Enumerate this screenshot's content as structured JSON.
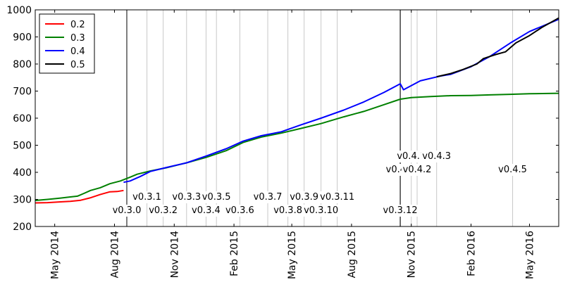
{
  "chart_data": {
    "type": "line",
    "ylim": [
      200,
      1000
    ],
    "y_ticks": [
      200,
      300,
      400,
      500,
      600,
      700,
      800,
      900,
      1000
    ],
    "xlim": [
      "2014-04-01",
      "2016-06-15"
    ],
    "x_ticks": [
      {
        "date": "2014-05-01",
        "label": "May 2014"
      },
      {
        "date": "2014-08-01",
        "label": "Aug 2014"
      },
      {
        "date": "2014-11-01",
        "label": "Nov 2014"
      },
      {
        "date": "2015-02-01",
        "label": "Feb 2015"
      },
      {
        "date": "2015-05-01",
        "label": "May 2015"
      },
      {
        "date": "2015-08-01",
        "label": "Aug 2015"
      },
      {
        "date": "2015-11-01",
        "label": "Nov 2015"
      },
      {
        "date": "2016-02-01",
        "label": "Feb 2016"
      },
      {
        "date": "2016-05-01",
        "label": "May 2016"
      }
    ],
    "grid": false,
    "legend_position": "top-left",
    "series": [
      {
        "name": "0.2",
        "color": "#ff0000",
        "points": [
          [
            "2014-04-01",
            287
          ],
          [
            "2014-04-20",
            288
          ],
          [
            "2014-05-10",
            291
          ],
          [
            "2014-05-25",
            293
          ],
          [
            "2014-06-10",
            297
          ],
          [
            "2014-06-25",
            306
          ],
          [
            "2014-07-10",
            318
          ],
          [
            "2014-07-25",
            328
          ],
          [
            "2014-08-05",
            329
          ],
          [
            "2014-08-15",
            333
          ]
        ]
      },
      {
        "name": "0.3",
        "color": "#008000",
        "points": [
          [
            "2014-04-01",
            296
          ],
          [
            "2014-04-20",
            300
          ],
          [
            "2014-05-10",
            305
          ],
          [
            "2014-05-25",
            309
          ],
          [
            "2014-06-05",
            312
          ],
          [
            "2014-06-15",
            322
          ],
          [
            "2014-06-25",
            333
          ],
          [
            "2014-07-10",
            343
          ],
          [
            "2014-07-25",
            358
          ],
          [
            "2014-08-10",
            368
          ],
          [
            "2014-08-25",
            382
          ],
          [
            "2014-09-05",
            393
          ],
          [
            "2014-09-25",
            405
          ],
          [
            "2014-10-20",
            417
          ],
          [
            "2014-11-20",
            435
          ],
          [
            "2014-12-20",
            455
          ],
          [
            "2015-01-20",
            480
          ],
          [
            "2015-02-15",
            510
          ],
          [
            "2015-03-15",
            530
          ],
          [
            "2015-04-15",
            545
          ],
          [
            "2015-05-15",
            562
          ],
          [
            "2015-06-15",
            580
          ],
          [
            "2015-07-20",
            605
          ],
          [
            "2015-08-20",
            625
          ],
          [
            "2015-09-20",
            650
          ],
          [
            "2015-10-15",
            670
          ],
          [
            "2015-11-01",
            676
          ],
          [
            "2015-12-01",
            680
          ],
          [
            "2016-01-01",
            683
          ],
          [
            "2016-02-01",
            684
          ],
          [
            "2016-03-01",
            686
          ],
          [
            "2016-04-01",
            688
          ],
          [
            "2016-05-01",
            690
          ],
          [
            "2016-06-15",
            692
          ]
        ]
      },
      {
        "name": "0.4",
        "color": "#0000ff",
        "points": [
          [
            "2014-08-15",
            363
          ],
          [
            "2014-08-25",
            368
          ],
          [
            "2014-09-10",
            385
          ],
          [
            "2014-09-25",
            403
          ],
          [
            "2014-10-20",
            418
          ],
          [
            "2014-11-20",
            435
          ],
          [
            "2014-12-20",
            460
          ],
          [
            "2015-01-20",
            487
          ],
          [
            "2015-02-15",
            515
          ],
          [
            "2015-03-15",
            535
          ],
          [
            "2015-04-15",
            550
          ],
          [
            "2015-05-15",
            575
          ],
          [
            "2015-06-15",
            600
          ],
          [
            "2015-07-20",
            630
          ],
          [
            "2015-08-20",
            660
          ],
          [
            "2015-09-20",
            695
          ],
          [
            "2015-10-15",
            727
          ],
          [
            "2015-10-20",
            705
          ],
          [
            "2015-11-01",
            720
          ],
          [
            "2015-11-15",
            738
          ],
          [
            "2015-12-15",
            755
          ],
          [
            "2016-01-01",
            762
          ],
          [
            "2016-02-01",
            790
          ],
          [
            "2016-03-01",
            828
          ],
          [
            "2016-04-01",
            877
          ],
          [
            "2016-05-01",
            920
          ],
          [
            "2016-06-15",
            965
          ]
        ]
      },
      {
        "name": "0.5",
        "color": "#000000",
        "points": [
          [
            "2015-12-10",
            753
          ],
          [
            "2016-01-01",
            765
          ],
          [
            "2016-01-20",
            780
          ],
          [
            "2016-02-10",
            800
          ],
          [
            "2016-02-20",
            820
          ],
          [
            "2016-03-10",
            835
          ],
          [
            "2016-03-25",
            845
          ],
          [
            "2016-04-10",
            878
          ],
          [
            "2016-05-01",
            905
          ],
          [
            "2016-05-20",
            935
          ],
          [
            "2016-06-15",
            970
          ]
        ]
      }
    ],
    "version_markers": [
      {
        "date": "2014-08-20",
        "label": "v0.3.0",
        "major": true
      },
      {
        "date": "2014-09-20",
        "label": "v0.3.1",
        "major": false
      },
      {
        "date": "2014-10-15",
        "label": "v0.3.2",
        "major": false
      },
      {
        "date": "2014-11-20",
        "label": "v0.3.3",
        "major": false
      },
      {
        "date": "2014-12-20",
        "label": "v0.3.4",
        "major": false
      },
      {
        "date": "2015-01-05",
        "label": "v0.3.5",
        "major": false
      },
      {
        "date": "2015-02-10",
        "label": "v0.3.6",
        "major": false
      },
      {
        "date": "2015-03-25",
        "label": "v0.3.7",
        "major": false
      },
      {
        "date": "2015-04-25",
        "label": "v0.3.8",
        "major": false
      },
      {
        "date": "2015-05-20",
        "label": "v0.3.9",
        "major": false
      },
      {
        "date": "2015-06-15",
        "label": "v0.3.10",
        "major": false
      },
      {
        "date": "2015-07-10",
        "label": "v0.3.11",
        "major": false
      },
      {
        "date": "2015-10-15",
        "label": "v0.3.12",
        "major": true
      },
      {
        "date": "2015-10-15",
        "label": "v0.4.0",
        "major": true
      },
      {
        "date": "2015-11-01",
        "label": "v0.4.1",
        "major": false
      },
      {
        "date": "2015-11-10",
        "label": "v0.4.2",
        "major": false
      },
      {
        "date": "2015-12-10",
        "label": "v0.4.3",
        "major": false
      },
      {
        "date": "2016-04-05",
        "label": "v0.4.5",
        "major": false
      }
    ],
    "marker_label_rows": {
      "v0.3.0": 2,
      "v0.3.1": 1,
      "v0.3.2": 2,
      "v0.3.3": 1,
      "v0.3.4": 2,
      "v0.3.5": 1,
      "v0.3.6": 2,
      "v0.3.7": 1,
      "v0.3.8": 2,
      "v0.3.9": 1,
      "v0.3.10": 2,
      "v0.3.11": 1,
      "v0.3.12": 2,
      "v0.4.0": 3,
      "v0.4.1": 4,
      "v0.4.2": 3,
      "v0.4.3": 4,
      "v0.4.5": 3
    }
  }
}
